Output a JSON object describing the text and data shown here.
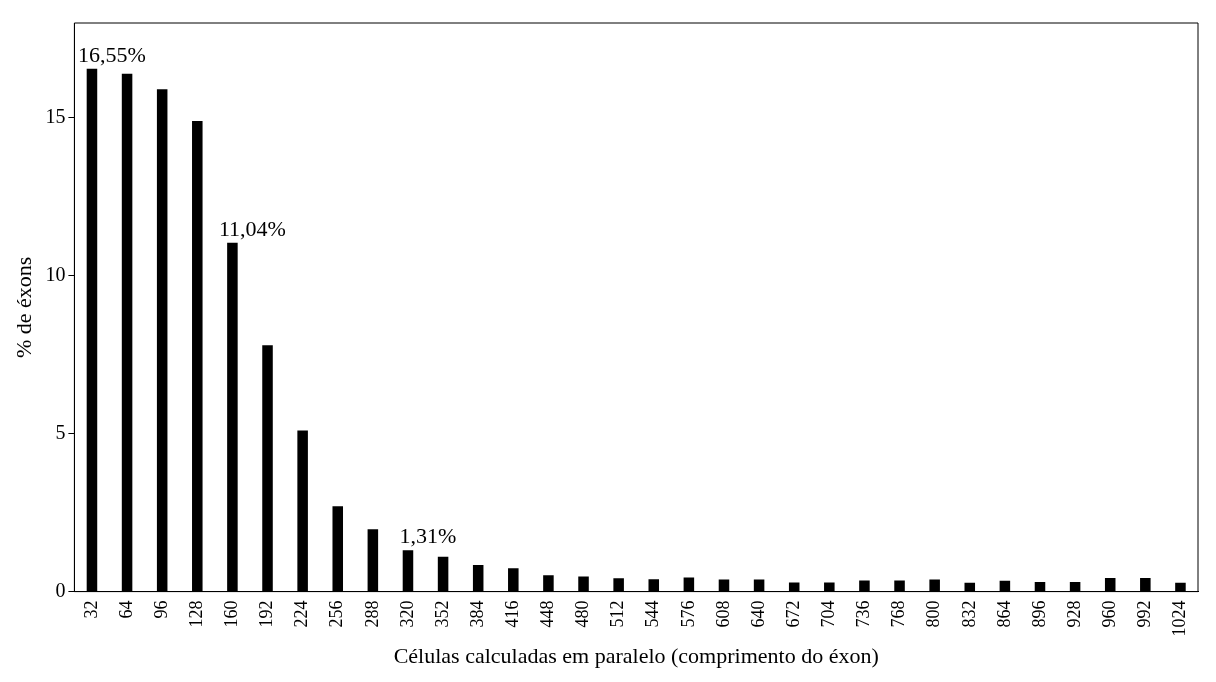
{
  "chart_data": {
    "type": "bar",
    "xlabel": "Células calculadas em paralelo (comprimento do éxon)",
    "ylabel": "% de éxons",
    "categories": [
      "32",
      "64",
      "96",
      "128",
      "160",
      "192",
      "224",
      "256",
      "288",
      "320",
      "352",
      "384",
      "416",
      "448",
      "480",
      "512",
      "544",
      "576",
      "608",
      "640",
      "672",
      "704",
      "736",
      "768",
      "800",
      "832",
      "864",
      "896",
      "928",
      "960",
      "992",
      "1024"
    ],
    "series": [
      {
        "color": "#000000",
        "values": [
          16.55,
          16.39,
          15.9,
          14.9,
          11.04,
          7.8,
          5.1,
          2.7,
          1.97,
          1.31,
          1.1,
          0.84,
          0.74,
          0.52,
          0.48,
          0.42,
          0.39,
          0.45,
          0.38,
          0.38,
          0.29,
          0.29,
          0.35,
          0.35,
          0.38,
          0.28,
          0.34,
          0.3,
          0.3,
          0.43,
          0.43,
          0.28
        ],
        "value_labels": [
          "16,55%",
          null,
          null,
          null,
          "11,04%",
          null,
          null,
          null,
          null,
          "1,31%",
          null,
          null,
          null,
          null,
          null,
          null,
          null,
          null,
          null,
          null,
          null,
          null,
          null,
          null,
          null,
          null,
          null,
          null,
          null,
          null,
          null,
          null
        ]
      }
    ],
    "ylim": [
      0,
      18
    ],
    "yticks": [
      0,
      5,
      10,
      15
    ],
    "grid": false,
    "legend": false
  }
}
